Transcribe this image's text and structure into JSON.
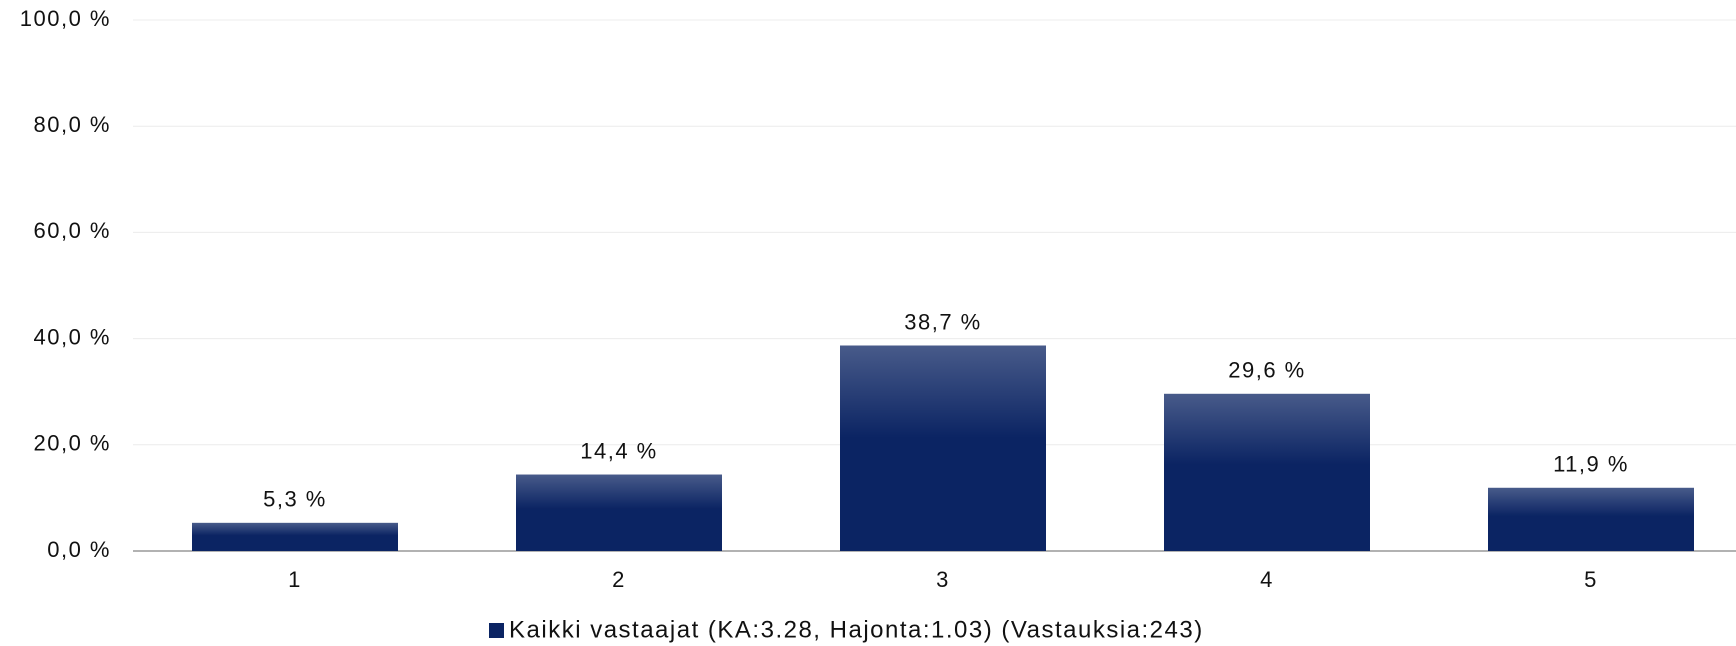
{
  "chart_data": {
    "type": "bar",
    "categories": [
      "1",
      "2",
      "3",
      "4",
      "5"
    ],
    "series": [
      {
        "name": "Kaikki vastaajat (KA:3.28, Hajonta:1.03) (Vastauksia:243)",
        "color": "#0b2463",
        "values": [
          5.3,
          14.4,
          38.7,
          29.6,
          11.9
        ],
        "value_labels": [
          "5,3 %",
          "14,4 %",
          "38,7 %",
          "29,6 %",
          "11,9 %"
        ]
      }
    ],
    "ylim": [
      0,
      100
    ],
    "yticks": [
      {
        "value": 0,
        "label": "0,0 %"
      },
      {
        "value": 20,
        "label": "20,0 %"
      },
      {
        "value": 40,
        "label": "40,0 %"
      },
      {
        "value": 60,
        "label": "60,0 %"
      },
      {
        "value": 80,
        "label": "80,0 %"
      },
      {
        "value": 100,
        "label": "100,0 %"
      }
    ],
    "grid": true,
    "legend": "bottom"
  }
}
